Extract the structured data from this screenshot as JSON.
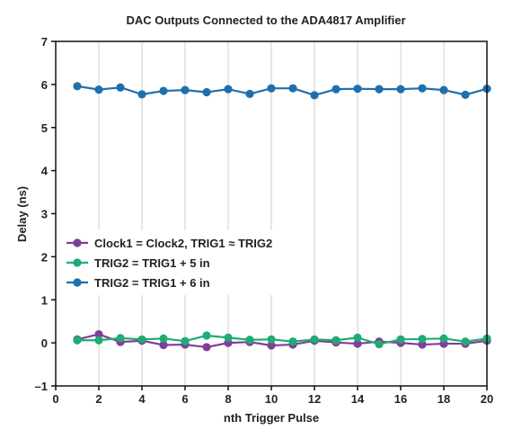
{
  "chart_data": {
    "type": "line",
    "title": "DAC Outputs Connected to the ADA4817 Amplifier",
    "xlabel": "nth Trigger Pulse",
    "ylabel": "Delay (ns)",
    "xlim": [
      0,
      20
    ],
    "ylim": [
      -1,
      7
    ],
    "xticks": [
      0,
      2,
      4,
      6,
      8,
      10,
      12,
      14,
      16,
      18,
      20
    ],
    "yticks": [
      -1,
      0,
      1,
      2,
      3,
      4,
      5,
      6,
      7
    ],
    "xtick_labels": [
      "0",
      "2",
      "4",
      "6",
      "8",
      "10",
      "12",
      "14",
      "16",
      "18",
      "20"
    ],
    "ytick_labels": [
      "–1",
      "0",
      "1",
      "2",
      "3",
      "4",
      "5",
      "6",
      "7"
    ],
    "grid": "vertical",
    "legend_position": "center-left",
    "x": [
      1,
      2,
      3,
      4,
      5,
      6,
      7,
      8,
      9,
      10,
      11,
      12,
      13,
      14,
      15,
      16,
      17,
      18,
      19,
      20
    ],
    "series": [
      {
        "name": "Clock1 = Clock2, TRIG1 ≈ TRIG2",
        "color": "#7e3f98",
        "values": [
          0.08,
          0.2,
          0.02,
          0.05,
          -0.05,
          -0.04,
          -0.1,
          0.0,
          0.02,
          -0.06,
          -0.04,
          0.05,
          0.01,
          -0.02,
          0.03,
          0.0,
          -0.04,
          -0.02,
          -0.02,
          0.05
        ]
      },
      {
        "name": "TRIG2 = TRIG1 + 5 in",
        "color": "#1fab73",
        "values": [
          0.06,
          0.06,
          0.11,
          0.08,
          0.1,
          0.04,
          0.17,
          0.12,
          0.07,
          0.08,
          0.03,
          0.08,
          0.06,
          0.12,
          -0.03,
          0.08,
          0.09,
          0.1,
          0.03,
          0.1
        ]
      },
      {
        "name": "TRIG2 = TRIG1 + 6 in",
        "color": "#1f6fad",
        "values": [
          5.96,
          5.88,
          5.93,
          5.77,
          5.85,
          5.87,
          5.82,
          5.89,
          5.78,
          5.91,
          5.91,
          5.75,
          5.89,
          5.9,
          5.89,
          5.89,
          5.91,
          5.87,
          5.76,
          5.9
        ]
      }
    ]
  }
}
